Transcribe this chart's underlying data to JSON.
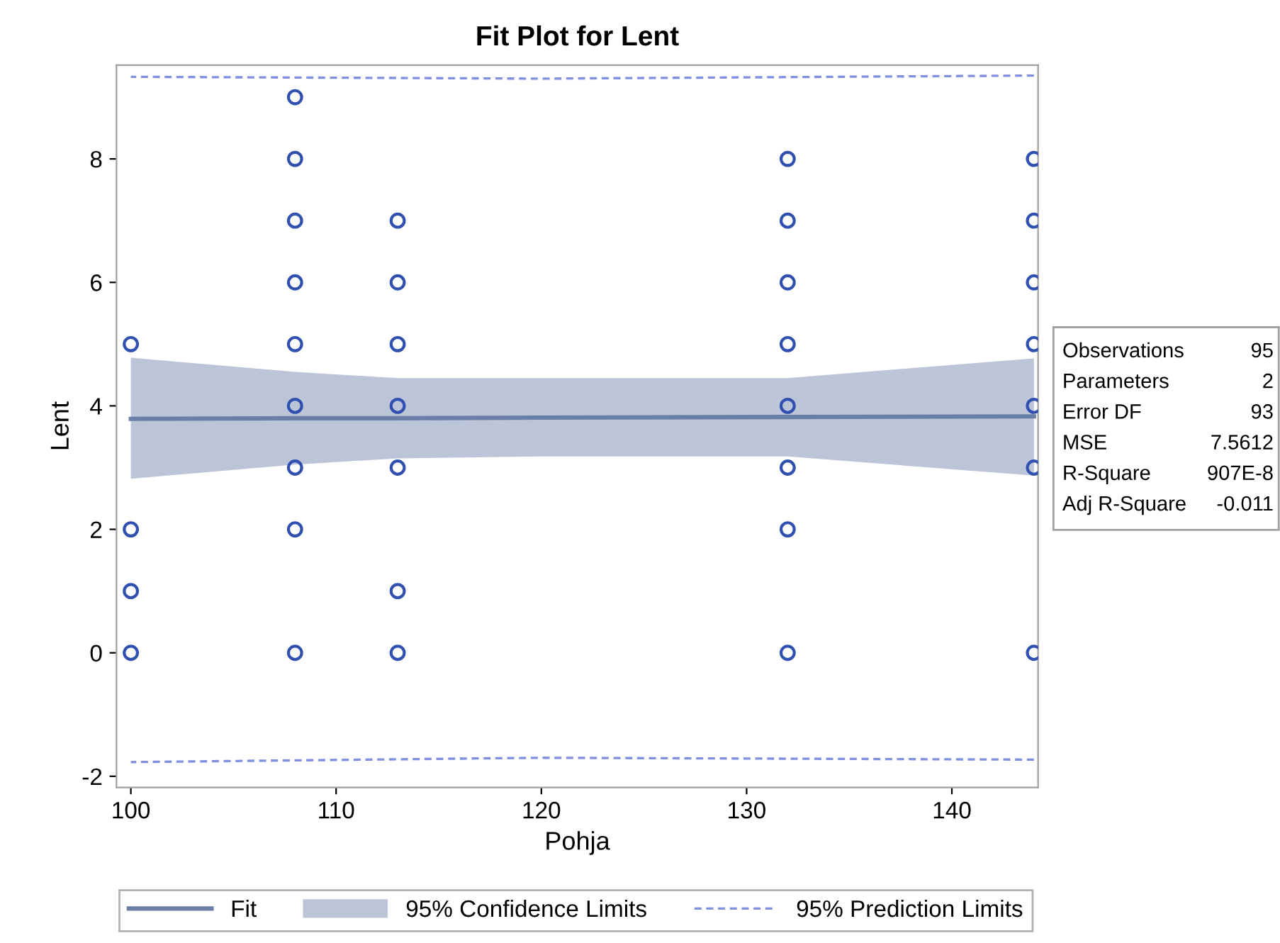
{
  "chart_data": {
    "type": "scatter",
    "title": "Fit Plot for Lent",
    "xlabel": "Pohja",
    "ylabel": "Lent",
    "xlim": [
      99.3,
      144.2
    ],
    "ylim": [
      -2.18,
      9.52
    ],
    "xticks": [
      100,
      110,
      120,
      130,
      140
    ],
    "yticks": [
      -2,
      0,
      2,
      4,
      6,
      8
    ],
    "grid": false,
    "legend": "bottom",
    "marker": "circle",
    "series": [
      {
        "type": "line",
        "name": "Fit",
        "color": "#6a7fa8",
        "line_style": "solid",
        "marker": "none",
        "x": [
          100,
          108,
          113,
          120,
          132,
          144
        ],
        "values": [
          3.79,
          3.8,
          3.8,
          3.81,
          3.82,
          3.83
        ],
        "lower": [
          2.82,
          3.05,
          3.15,
          3.18,
          3.18,
          2.87
        ],
        "upper": [
          4.78,
          4.55,
          4.45,
          4.45,
          4.45,
          4.77
        ]
      },
      {
        "type": "line",
        "name": "95% Prediction Limits",
        "color": "#8090e0",
        "line_style": "dashed",
        "marker": "none",
        "x": [
          100,
          120,
          144
        ],
        "values": [
          9.33,
          9.3,
          9.35
        ]
      },
      {
        "type": "line",
        "color": "#8090e0",
        "line_style": "dashed",
        "marker": "none",
        "x": [
          100,
          120,
          144
        ],
        "values": [
          -1.77,
          -1.7,
          -1.73
        ]
      },
      {
        "color": "#3050b0",
        "x": [
          100,
          100,
          100,
          100,
          108,
          108,
          108,
          108,
          108,
          108,
          108,
          108,
          108,
          113,
          113,
          113,
          113,
          113,
          113,
          113,
          132,
          132,
          132,
          132,
          132,
          132,
          132,
          132,
          144,
          144,
          144,
          144,
          144,
          144,
          144
        ],
        "values": [
          5,
          2,
          1,
          0,
          9,
          8,
          7,
          6,
          5,
          4,
          3,
          2,
          0,
          7,
          6,
          5,
          4,
          3,
          1,
          0,
          8,
          7,
          6,
          5,
          4,
          3,
          2,
          0,
          8,
          7,
          6,
          5,
          4,
          3,
          0
        ]
      }
    ],
    "annotations": [
      "95% Confidence Limits",
      "Observations",
      "95",
      "Parameters",
      "2",
      "Error DF",
      "93",
      "MSE",
      "7.5612",
      "R-Square",
      "907E-8",
      "Adj R-Square",
      "-0.011"
    ]
  }
}
